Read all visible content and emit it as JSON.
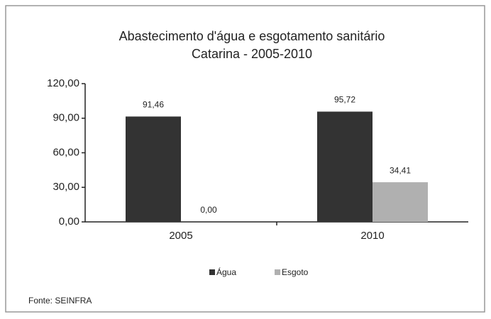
{
  "chart_data": {
    "type": "bar",
    "title": "Abastecimento d'água e esgotamento sanitário",
    "subtitle": "Catarina - 2005-2010",
    "categories": [
      "2005",
      "2010"
    ],
    "series": [
      {
        "name": "Água",
        "color": "#333333",
        "values": [
          91.46,
          95.72
        ],
        "value_labels": [
          "91,46",
          "95,72"
        ]
      },
      {
        "name": "Esgoto",
        "color": "#b0b0b0",
        "values": [
          0,
          34.41
        ],
        "value_labels": [
          "0,00",
          "34,41"
        ]
      }
    ],
    "ylim": [
      0,
      120
    ],
    "yticks": [
      {
        "value": 0,
        "label": "0,00"
      },
      {
        "value": 30,
        "label": "30,00"
      },
      {
        "value": 60,
        "label": "60,00"
      },
      {
        "value": 90,
        "label": "90,00"
      },
      {
        "value": 120,
        "label": "120,00"
      }
    ],
    "legend": "bottom",
    "source": "Fonte: SEINFRA"
  }
}
